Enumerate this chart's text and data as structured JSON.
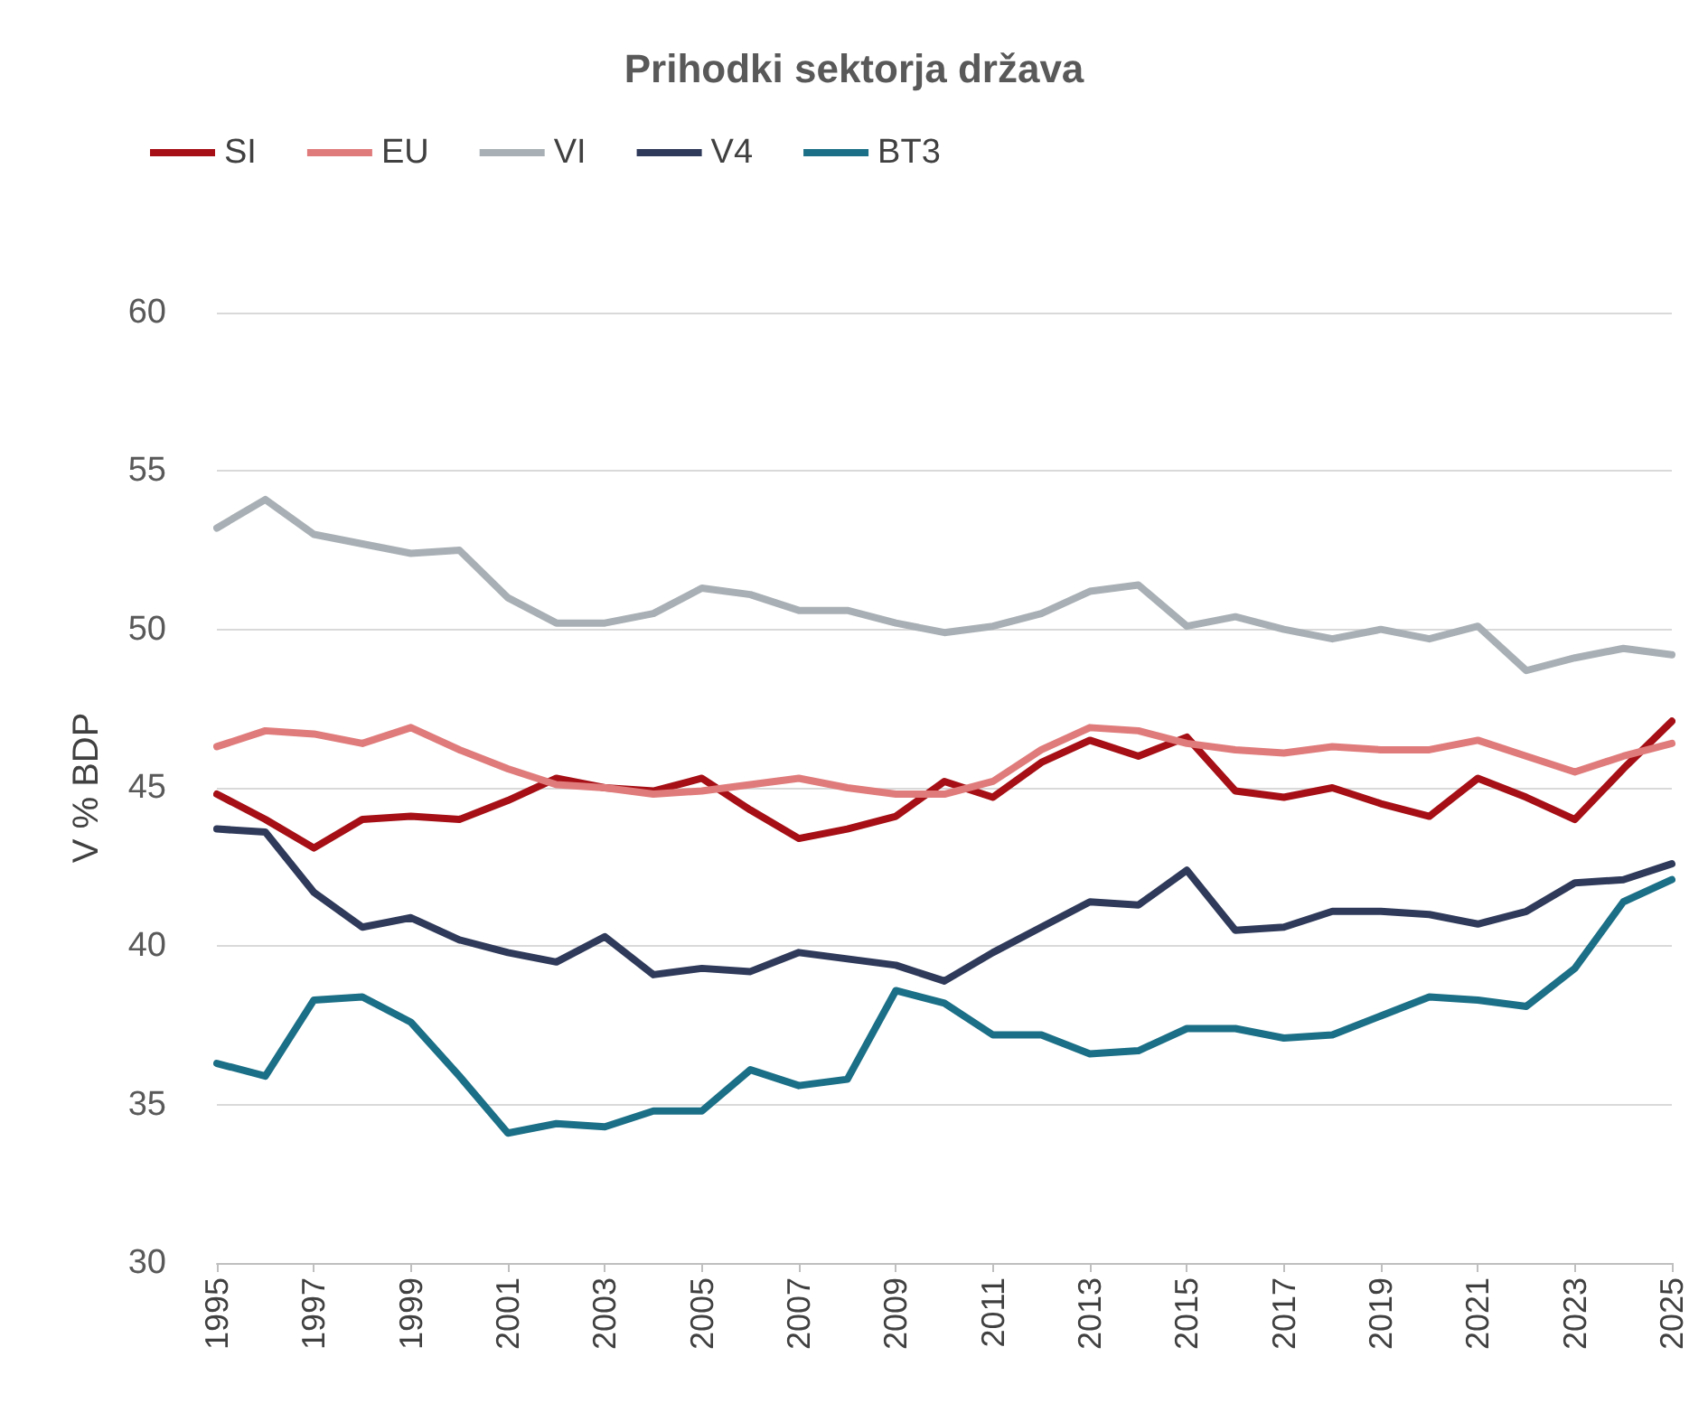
{
  "chart_data": {
    "type": "line",
    "title": "Prihodki sektorja država",
    "ylabel": "V % BDP",
    "x": [
      1995,
      1996,
      1997,
      1998,
      1999,
      2000,
      2001,
      2002,
      2003,
      2004,
      2005,
      2006,
      2007,
      2008,
      2009,
      2010,
      2011,
      2012,
      2013,
      2014,
      2015,
      2016,
      2017,
      2018,
      2019,
      2020,
      2021,
      2022,
      2023,
      2024,
      2025
    ],
    "xlim": [
      1995,
      2025
    ],
    "xticks": [
      1995,
      1997,
      1999,
      2001,
      2003,
      2005,
      2007,
      2009,
      2011,
      2013,
      2015,
      2017,
      2019,
      2021,
      2023,
      2025
    ],
    "ylim": [
      30,
      60
    ],
    "yticks": [
      30,
      35,
      40,
      45,
      50,
      55,
      60
    ],
    "grid": "y",
    "legend": "top left",
    "marker": "none",
    "line_style": "solid",
    "series": [
      {
        "name": "SI",
        "color": "#a50f15",
        "values": [
          44.8,
          44.0,
          43.1,
          44.0,
          44.1,
          44.0,
          44.6,
          45.3,
          45.0,
          44.9,
          45.3,
          44.3,
          43.4,
          43.7,
          44.1,
          45.2,
          44.7,
          45.8,
          46.5,
          46.0,
          46.6,
          44.9,
          44.7,
          45.0,
          44.5,
          44.1,
          45.3,
          44.7,
          44.0,
          45.6,
          47.1
        ]
      },
      {
        "name": "EU",
        "color": "#e07b7b",
        "values": [
          46.3,
          46.8,
          46.7,
          46.4,
          46.9,
          46.2,
          45.6,
          45.1,
          45.0,
          44.8,
          44.9,
          45.1,
          45.3,
          45.0,
          44.8,
          44.8,
          45.2,
          46.2,
          46.9,
          46.8,
          46.4,
          46.2,
          46.1,
          46.3,
          46.2,
          46.2,
          46.5,
          46.0,
          45.5,
          46.0,
          46.4
        ]
      },
      {
        "name": "VI",
        "color": "#a9b0b5",
        "values": [
          53.2,
          54.1,
          53.0,
          52.7,
          52.4,
          52.5,
          51.0,
          50.2,
          50.2,
          50.5,
          51.3,
          51.1,
          50.6,
          50.6,
          50.2,
          49.9,
          50.1,
          50.5,
          51.2,
          51.4,
          50.1,
          50.4,
          50.0,
          49.7,
          50.0,
          49.7,
          50.1,
          48.7,
          49.1,
          49.4,
          49.2
        ]
      },
      {
        "name": "V4",
        "color": "#2f3a5a",
        "values": [
          43.7,
          43.6,
          41.7,
          40.6,
          40.9,
          40.2,
          39.8,
          39.5,
          40.3,
          39.1,
          39.3,
          39.2,
          39.8,
          39.6,
          39.4,
          38.9,
          39.8,
          40.6,
          41.4,
          41.3,
          42.4,
          40.5,
          40.6,
          41.1,
          41.1,
          41.0,
          40.7,
          41.1,
          42.0,
          42.1,
          42.6
        ]
      },
      {
        "name": "BT3",
        "color": "#1b6f86",
        "values": [
          36.3,
          35.9,
          38.3,
          38.4,
          37.6,
          35.9,
          34.1,
          34.4,
          34.3,
          34.8,
          34.8,
          36.1,
          35.6,
          35.8,
          38.6,
          38.2,
          37.2,
          37.2,
          36.6,
          36.7,
          37.4,
          37.4,
          37.1,
          37.2,
          37.8,
          38.4,
          38.3,
          38.1,
          39.3,
          41.4,
          42.1
        ]
      }
    ]
  }
}
